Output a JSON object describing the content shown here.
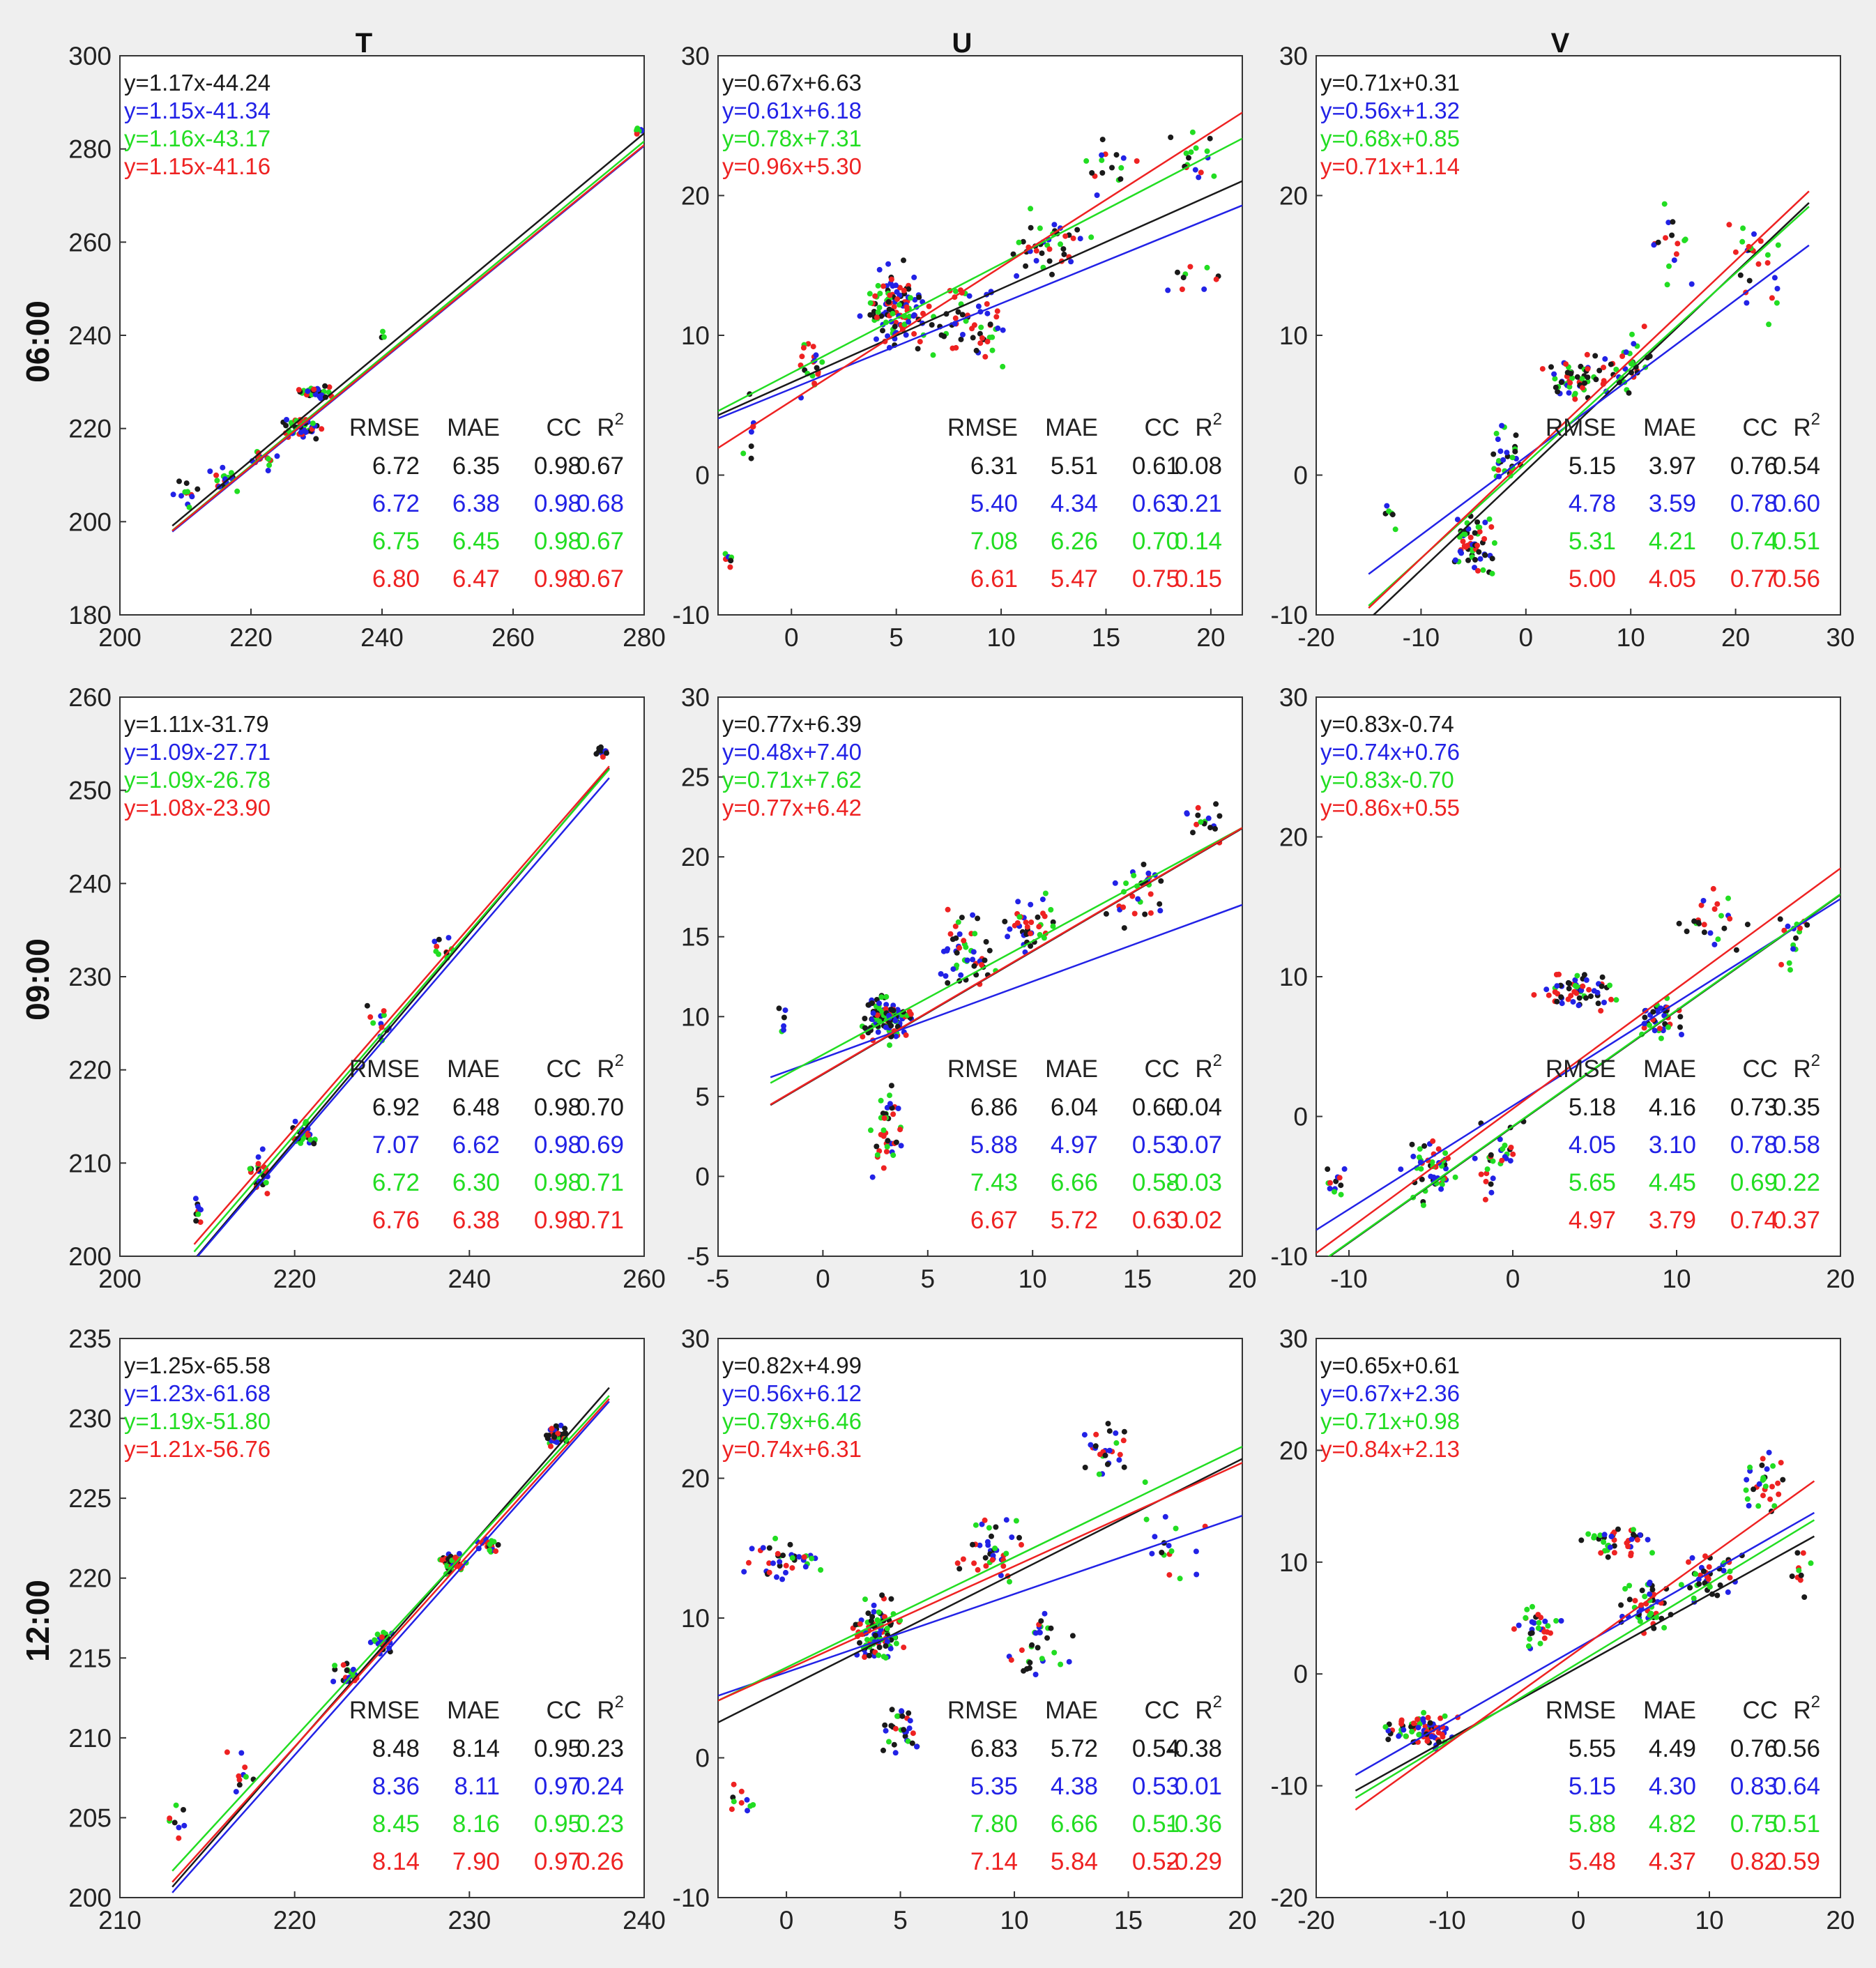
{
  "colors": {
    "black": "#1a1a1a",
    "blue": "#2222e6",
    "green": "#22dd22",
    "red": "#ee2222"
  },
  "stats_header": [
    "RMSE",
    "MAE",
    "CC",
    "R2"
  ],
  "columns": [
    "T",
    "U",
    "V"
  ],
  "rows": [
    "06:00",
    "09:00",
    "12:00"
  ],
  "chart_data": [
    {
      "type": "scatter",
      "row": "06:00",
      "col": "T",
      "xlim": [
        200,
        280
      ],
      "ylim": [
        180,
        300
      ],
      "xticks": [
        200,
        220,
        240,
        260,
        280
      ],
      "yticks": [
        180,
        200,
        220,
        240,
        260,
        280,
        300
      ],
      "equations": [
        "y=1.17x-44.24",
        "y=1.15x-41.34",
        "y=1.16x-43.17",
        "y=1.15x-41.16"
      ],
      "fits": [
        [
          1.17,
          -44.24
        ],
        [
          1.15,
          -41.34
        ],
        [
          1.16,
          -43.17
        ],
        [
          1.15,
          -41.16
        ]
      ],
      "fit_x": [
        208,
        280
      ],
      "stats": [
        [
          "6.72",
          "6.35",
          "0.98",
          "0.67"
        ],
        [
          "6.72",
          "6.38",
          "0.98",
          "0.68"
        ],
        [
          "6.75",
          "6.45",
          "0.98",
          "0.67"
        ],
        [
          "6.80",
          "6.47",
          "0.98",
          "0.67"
        ]
      ],
      "clusters": [
        [
          210,
          206,
          3,
          4,
          12
        ],
        [
          216,
          209,
          3,
          4,
          18
        ],
        [
          222,
          213,
          3,
          3,
          16
        ],
        [
          228,
          220,
          4,
          3,
          50
        ],
        [
          230,
          228,
          3,
          2,
          30
        ],
        [
          240,
          240,
          1,
          1,
          3
        ],
        [
          279,
          284,
          1,
          1,
          8
        ]
      ]
    },
    {
      "type": "scatter",
      "row": "06:00",
      "col": "U",
      "xlim": [
        -3.5,
        21.5
      ],
      "ylim": [
        -10,
        30
      ],
      "xticks": [
        0,
        5,
        10,
        15,
        20
      ],
      "yticks": [
        -10,
        0,
        10,
        20,
        30
      ],
      "equations": [
        "y=0.67x+6.63",
        "y=0.61x+6.18",
        "y=0.78x+7.31",
        "y=0.96x+5.30"
      ],
      "fits": [
        [
          0.67,
          6.63
        ],
        [
          0.61,
          6.18
        ],
        [
          0.78,
          7.31
        ],
        [
          0.96,
          5.3
        ]
      ],
      "fit_x": [
        -3.5,
        21.5
      ],
      "stats": [
        [
          "6.31",
          "5.51",
          "0.61",
          "0.08"
        ],
        [
          "5.40",
          "4.34",
          "0.63",
          "0.21"
        ],
        [
          "7.08",
          "6.26",
          "0.70",
          "0.14"
        ],
        [
          "6.61",
          "5.47",
          "0.75",
          "0.15"
        ]
      ],
      "clusters": [
        [
          -3,
          -6,
          0.5,
          1,
          8
        ],
        [
          -2,
          4,
          0.5,
          4,
          8
        ],
        [
          1,
          8,
          1,
          3,
          20
        ],
        [
          5,
          12,
          2,
          4,
          120
        ],
        [
          8,
          11,
          3,
          4,
          60
        ],
        [
          12,
          16,
          3,
          4,
          40
        ],
        [
          15,
          22,
          2,
          3,
          16
        ],
        [
          19,
          23,
          2,
          3,
          16
        ],
        [
          19,
          14,
          2,
          2,
          10
        ]
      ]
    },
    {
      "type": "scatter",
      "row": "06:00",
      "col": "V",
      "xlim": [
        -20,
        30
      ],
      "ylim": [
        -10,
        30
      ],
      "xticks": [
        -20,
        -10,
        0,
        10,
        20,
        30
      ],
      "yticks": [
        -10,
        0,
        10,
        20,
        30
      ],
      "equations": [
        "y=0.71x+0.31",
        "y=0.56x+1.32",
        "y=0.68x+0.85",
        "y=0.71x+1.14"
      ],
      "fits": [
        [
          0.71,
          0.31
        ],
        [
          0.56,
          1.32
        ],
        [
          0.68,
          0.85
        ],
        [
          0.71,
          1.14
        ]
      ],
      "fit_x": [
        -15,
        27
      ],
      "stats": [
        [
          "5.15",
          "3.97",
          "0.76",
          "0.54"
        ],
        [
          "4.78",
          "3.59",
          "0.78",
          "0.60"
        ],
        [
          "5.31",
          "4.21",
          "0.74",
          "0.51"
        ],
        [
          "5.00",
          "4.05",
          "0.77",
          "0.56"
        ]
      ],
      "clusters": [
        [
          -5,
          -5,
          3,
          3,
          60
        ],
        [
          -2,
          1,
          2,
          3,
          30
        ],
        [
          5,
          7,
          4,
          2,
          60
        ],
        [
          10,
          8,
          3,
          3,
          30
        ],
        [
          14,
          17,
          3,
          4,
          16
        ],
        [
          22,
          15,
          4,
          5,
          24
        ],
        [
          -13,
          -3,
          1,
          2,
          6
        ]
      ]
    },
    {
      "type": "scatter",
      "row": "09:00",
      "col": "T",
      "xlim": [
        200,
        260
      ],
      "ylim": [
        200,
        260
      ],
      "xticks": [
        200,
        220,
        240,
        260
      ],
      "yticks": [
        200,
        210,
        220,
        230,
        240,
        250,
        260
      ],
      "equations": [
        "y=1.11x-31.79",
        "y=1.09x-27.71",
        "y=1.09x-26.78",
        "y=1.08x-23.90"
      ],
      "fits": [
        [
          1.11,
          -31.79
        ],
        [
          1.09,
          -27.71
        ],
        [
          1.09,
          -26.78
        ],
        [
          1.08,
          -23.9
        ]
      ],
      "fit_x": [
        208.5,
        256
      ],
      "stats": [
        [
          "6.92",
          "6.48",
          "0.98",
          "0.70"
        ],
        [
          "7.07",
          "6.62",
          "0.98",
          "0.69"
        ],
        [
          "6.72",
          "6.30",
          "0.98",
          "0.71"
        ],
        [
          "6.76",
          "6.38",
          "0.98",
          "0.71"
        ]
      ],
      "clusters": [
        [
          209,
          205,
          1,
          2,
          10
        ],
        [
          216,
          209,
          2,
          3,
          20
        ],
        [
          221,
          213,
          2,
          2,
          30
        ],
        [
          230,
          225,
          2,
          3,
          12
        ],
        [
          237,
          233,
          2,
          2,
          10
        ],
        [
          255,
          254,
          1,
          1,
          12
        ]
      ]
    },
    {
      "type": "scatter",
      "row": "09:00",
      "col": "U",
      "xlim": [
        -5,
        20
      ],
      "ylim": [
        -5,
        30
      ],
      "xticks": [
        -5,
        0,
        5,
        10,
        15,
        20
      ],
      "yticks": [
        -5,
        0,
        5,
        10,
        15,
        20,
        25,
        30
      ],
      "equations": [
        "y=0.77x+6.39",
        "y=0.48x+7.40",
        "y=0.71x+7.62",
        "y=0.77x+6.42"
      ],
      "fits": [
        [
          0.77,
          6.39
        ],
        [
          0.48,
          7.4
        ],
        [
          0.71,
          7.62
        ],
        [
          0.77,
          6.42
        ]
      ],
      "fit_x": [
        -2.5,
        20
      ],
      "stats": [
        [
          "6.86",
          "6.04",
          "0.60",
          "-0.04"
        ],
        [
          "5.88",
          "4.97",
          "0.53",
          "0.07"
        ],
        [
          "7.43",
          "6.66",
          "0.58",
          "-0.03"
        ],
        [
          "6.67",
          "5.72",
          "0.63",
          "0.02"
        ]
      ],
      "clusters": [
        [
          3,
          10,
          1.5,
          2,
          120
        ],
        [
          3,
          3,
          1,
          4,
          40
        ],
        [
          7,
          14,
          2,
          3,
          50
        ],
        [
          10,
          16,
          2,
          3,
          40
        ],
        [
          15,
          18,
          2,
          3,
          30
        ],
        [
          18,
          22,
          2,
          2,
          16
        ],
        [
          -2,
          10,
          0.5,
          2,
          6
        ]
      ]
    },
    {
      "type": "scatter",
      "row": "09:00",
      "col": "V",
      "xlim": [
        -12,
        20
      ],
      "ylim": [
        -10,
        30
      ],
      "xticks": [
        -10,
        0,
        10,
        20
      ],
      "yticks": [
        -10,
        0,
        10,
        20,
        30
      ],
      "equations": [
        "y=0.83x-0.74",
        "y=0.74x+0.76",
        "y=0.83x-0.70",
        "y=0.86x+0.55"
      ],
      "fits": [
        [
          0.83,
          -0.74
        ],
        [
          0.74,
          0.76
        ],
        [
          0.83,
          -0.7
        ],
        [
          0.86,
          0.55
        ]
      ],
      "fit_x": [
        -12,
        20
      ],
      "stats": [
        [
          "5.18",
          "4.16",
          "0.73",
          "0.35"
        ],
        [
          "4.05",
          "3.10",
          "0.78",
          "0.58"
        ],
        [
          "5.65",
          "4.45",
          "0.69",
          "0.22"
        ],
        [
          "4.97",
          "3.79",
          "0.74",
          "0.37"
        ]
      ],
      "clusters": [
        [
          -11,
          -5,
          1,
          2,
          12
        ],
        [
          -5,
          -4,
          2,
          3,
          50
        ],
        [
          -1,
          -3,
          2,
          4,
          30
        ],
        [
          4,
          9,
          3,
          2,
          60
        ],
        [
          9,
          7,
          2,
          2,
          40
        ],
        [
          12,
          14,
          3,
          5,
          24
        ],
        [
          17,
          13,
          2,
          4,
          16
        ]
      ]
    },
    {
      "type": "scatter",
      "row": "12:00",
      "col": "T",
      "xlim": [
        210,
        240
      ],
      "ylim": [
        200,
        235
      ],
      "xticks": [
        210,
        220,
        230,
        240
      ],
      "yticks": [
        200,
        205,
        210,
        215,
        220,
        225,
        230,
        235
      ],
      "equations": [
        "y=1.25x-65.58",
        "y=1.23x-61.68",
        "y=1.19x-51.80",
        "y=1.21x-56.76"
      ],
      "fits": [
        [
          1.25,
          -65.58
        ],
        [
          1.23,
          -61.68
        ],
        [
          1.19,
          -51.8
        ],
        [
          1.21,
          -56.76
        ]
      ],
      "fit_x": [
        213,
        238
      ],
      "stats": [
        [
          "8.48",
          "8.14",
          "0.95",
          "0.23"
        ],
        [
          "8.36",
          "8.11",
          "0.97",
          "0.24"
        ],
        [
          "8.45",
          "8.16",
          "0.95",
          "0.23"
        ],
        [
          "8.14",
          "7.90",
          "0.97",
          "0.26"
        ]
      ],
      "clusters": [
        [
          213,
          205,
          1,
          2,
          8
        ],
        [
          217,
          208,
          1,
          2,
          10
        ],
        [
          223,
          214,
          1,
          1,
          20
        ],
        [
          225,
          216,
          1,
          1,
          24
        ],
        [
          229,
          221,
          1,
          1,
          40
        ],
        [
          231,
          222,
          1,
          1,
          20
        ],
        [
          235,
          229,
          1,
          1,
          40
        ]
      ]
    },
    {
      "type": "scatter",
      "row": "12:00",
      "col": "U",
      "xlim": [
        -3,
        20
      ],
      "ylim": [
        -10,
        30
      ],
      "xticks": [
        0,
        5,
        10,
        15,
        20
      ],
      "yticks": [
        -10,
        0,
        10,
        20,
        30
      ],
      "equations": [
        "y=0.82x+4.99",
        "y=0.56x+6.12",
        "y=0.79x+6.46",
        "y=0.74x+6.31"
      ],
      "fits": [
        [
          0.82,
          4.99
        ],
        [
          0.56,
          6.12
        ],
        [
          0.79,
          6.46
        ],
        [
          0.74,
          6.31
        ]
      ],
      "fit_x": [
        -3,
        20
      ],
      "stats": [
        [
          "6.83",
          "5.72",
          "0.54",
          "-0.38"
        ],
        [
          "5.35",
          "4.38",
          "0.53",
          "0.01"
        ],
        [
          "7.80",
          "6.66",
          "0.51",
          "-0.36"
        ],
        [
          "7.14",
          "5.84",
          "0.52",
          "-0.29"
        ]
      ],
      "clusters": [
        [
          0,
          14,
          2,
          2,
          40
        ],
        [
          -2,
          -3,
          1,
          2,
          10
        ],
        [
          4,
          9,
          1.5,
          3,
          100
        ],
        [
          5,
          2,
          1,
          3,
          30
        ],
        [
          9,
          15,
          2,
          4,
          40
        ],
        [
          11,
          8,
          2,
          3,
          30
        ],
        [
          14,
          22,
          2,
          3,
          30
        ],
        [
          17,
          15,
          2,
          3,
          16
        ]
      ]
    },
    {
      "type": "scatter",
      "row": "12:00",
      "col": "V",
      "xlim": [
        -20,
        20
      ],
      "ylim": [
        -20,
        30
      ],
      "xticks": [
        -20,
        -10,
        0,
        10,
        20
      ],
      "yticks": [
        -20,
        -10,
        0,
        10,
        20,
        30
      ],
      "equations": [
        "y=0.65x+0.61",
        "y=0.67x+2.36",
        "y=0.71x+0.98",
        "y=0.84x+2.13"
      ],
      "fits": [
        [
          0.65,
          0.61
        ],
        [
          0.67,
          2.36
        ],
        [
          0.71,
          0.98
        ],
        [
          0.84,
          2.13
        ]
      ],
      "fit_x": [
        -17,
        18
      ],
      "stats": [
        [
          "5.55",
          "4.49",
          "0.76",
          "0.56"
        ],
        [
          "5.15",
          "4.30",
          "0.83",
          "0.64"
        ],
        [
          "5.88",
          "4.82",
          "0.75",
          "0.51"
        ],
        [
          "5.48",
          "4.37",
          "0.82",
          "0.59"
        ]
      ],
      "clusters": [
        [
          -12,
          -5,
          4,
          2,
          80
        ],
        [
          -3,
          4,
          2,
          3,
          30
        ],
        [
          3,
          12,
          3,
          2,
          40
        ],
        [
          5,
          6,
          3,
          3,
          50
        ],
        [
          10,
          9,
          3,
          3,
          40
        ],
        [
          14,
          17,
          2,
          4,
          30
        ],
        [
          17,
          10,
          1,
          4,
          10
        ]
      ]
    }
  ]
}
